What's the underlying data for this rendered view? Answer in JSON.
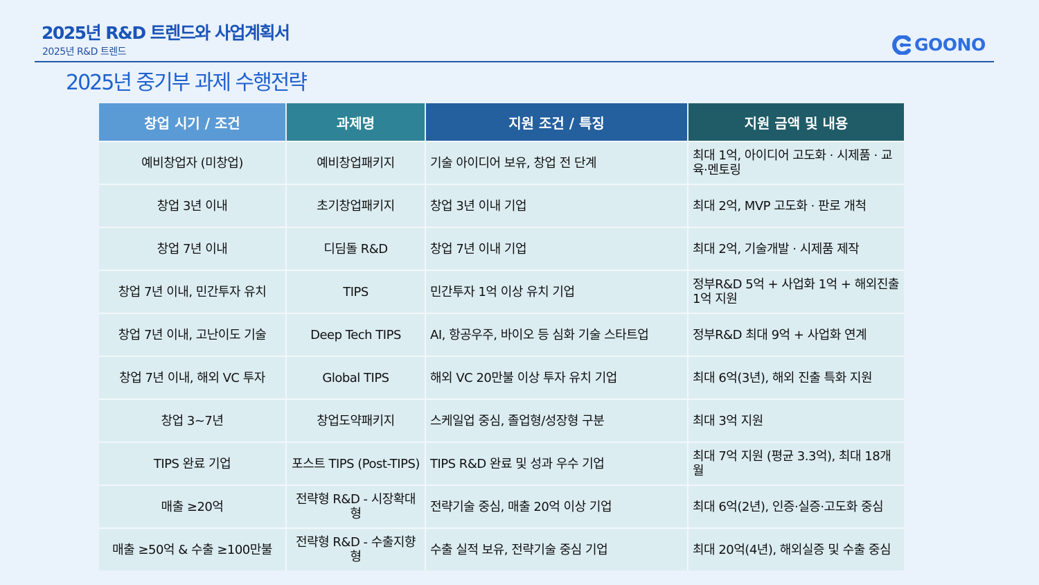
{
  "header": {
    "doc_title": "2025년 R&D 트렌드와 사업계획서",
    "doc_subtitle": "2025년 R&D 트렌드",
    "logo_text": "GOONO",
    "logo_color": "#2f6fe0"
  },
  "section_title": "2025년 중기부 과제 수행전략",
  "table": {
    "columns": [
      {
        "label": "창업 시기 / 조건",
        "color": "#5b9bd5"
      },
      {
        "label": "과제명",
        "color": "#2e8496"
      },
      {
        "label": "지원 조건 / 특징",
        "color": "#245f9e"
      },
      {
        "label": "지원 금액 및 내용",
        "color": "#1f5c68"
      }
    ],
    "rows": [
      [
        "예비창업자 (미창업)",
        "예비창업패키지",
        "기술 아이디어 보유, 창업 전 단계",
        "최대 1억, 아이디어 고도화 · 시제품 · 교육·멘토링"
      ],
      [
        "창업 3년 이내",
        "초기창업패키지",
        "창업 3년 이내 기업",
        "최대 2억, MVP 고도화 · 판로 개척"
      ],
      [
        "창업 7년 이내",
        "디딤돌 R&D",
        "창업 7년 이내 기업",
        "최대 2억, 기술개발 · 시제품 제작"
      ],
      [
        "창업 7년 이내, 민간투자 유치",
        "TIPS",
        "민간투자 1억 이상 유치 기업",
        "정부R&D 5억 + 사업화 1억 + 해외진출 1억 지원"
      ],
      [
        "창업 7년 이내, 고난이도 기술",
        "Deep Tech TIPS",
        "AI, 항공우주, 바이오 등 심화 기술 스타트업",
        "정부R&D 최대 9억 + 사업화 연계"
      ],
      [
        "창업 7년 이내, 해외 VC 투자",
        "Global TIPS",
        "해외 VC 20만불 이상 투자 유치 기업",
        "최대 6억(3년), 해외 진출 특화 지원"
      ],
      [
        "창업 3~7년",
        "창업도약패키지",
        "스케일업 중심, 졸업형/성장형 구분",
        "최대 3억 지원"
      ],
      [
        "TIPS 완료 기업",
        "포스트 TIPS (Post-TIPS)",
        "TIPS R&D 완료 및 성과 우수 기업",
        "최대 7억 지원 (평균 3.3억), 최대 18개월"
      ],
      [
        "매출 ≥20억",
        "전략형 R&D - 시장확대형",
        "전략기술 중심, 매출 20억 이상 기업",
        "최대 6억(2년), 인증·실증·고도화 중심"
      ],
      [
        "매출 ≥50억 & 수출 ≥100만불",
        "전략형 R&D - 수출지향형",
        "수출 실적 보유, 전략기술 중심 기업",
        "최대 20억(4년), 해외실증 및 수출 중심"
      ]
    ]
  }
}
